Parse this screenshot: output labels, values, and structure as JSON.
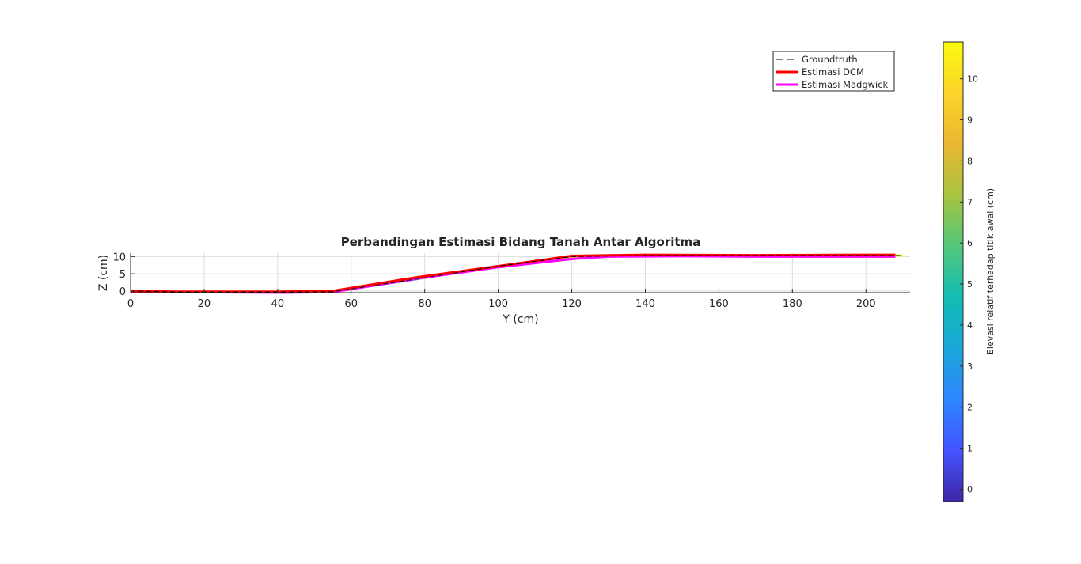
{
  "chart_data": {
    "type": "line",
    "title": "Perbandingan Estimasi Bidang Tanah Antar Algoritma",
    "xlabel": "Y (cm)",
    "ylabel": "Z (cm)",
    "xlim": [
      0,
      212
    ],
    "ylim": [
      -0.5,
      11
    ],
    "xticks": [
      0,
      20,
      40,
      60,
      80,
      100,
      120,
      140,
      160,
      180,
      200
    ],
    "yticks": [
      0,
      5,
      10
    ],
    "grid": true,
    "legend_position": "top-right",
    "series": [
      {
        "name": "Groundtruth",
        "color": "#000000",
        "style": "dashed",
        "x": [
          0,
          12,
          40,
          55,
          78,
          100,
          120,
          140,
          170,
          200,
          210
        ],
        "y": [
          0,
          -0.3,
          -0.3,
          -0.2,
          3.5,
          7.2,
          10,
          10.3,
          10.3,
          10.3,
          10.3
        ]
      },
      {
        "name": "Estimasi DCM",
        "color": "#ff0000",
        "style": "solid",
        "x": [
          0,
          12,
          40,
          55,
          78,
          100,
          120,
          140,
          170,
          200,
          208
        ],
        "y": [
          0,
          -0.2,
          -0.2,
          0,
          4,
          7.2,
          10.2,
          10.5,
          10.4,
          10.5,
          10.5
        ]
      },
      {
        "name": "Estimasi Madgwick",
        "color": "#ff00ff",
        "style": "solid",
        "x": [
          0,
          12,
          42,
          55,
          78,
          100,
          120,
          130,
          150,
          170,
          208
        ],
        "y": [
          -0.1,
          -0.3,
          -0.5,
          -0.3,
          3.6,
          6.9,
          9.3,
          10,
          10.1,
          10,
          10
        ]
      }
    ],
    "colorbar": {
      "label": "Elevasi relatif terhadap titik awal (cm)",
      "min": -0.3,
      "max": 10.9,
      "ticks": [
        0,
        1,
        2,
        3,
        4,
        5,
        6,
        7,
        8,
        9,
        10
      ],
      "colormap": [
        "#3e26a8",
        "#4454ff",
        "#2d86ff",
        "#1ba7d9",
        "#12bdb3",
        "#52c77b",
        "#a8c43f",
        "#ecb731",
        "#fbd42b",
        "#f9fb0e"
      ]
    }
  }
}
